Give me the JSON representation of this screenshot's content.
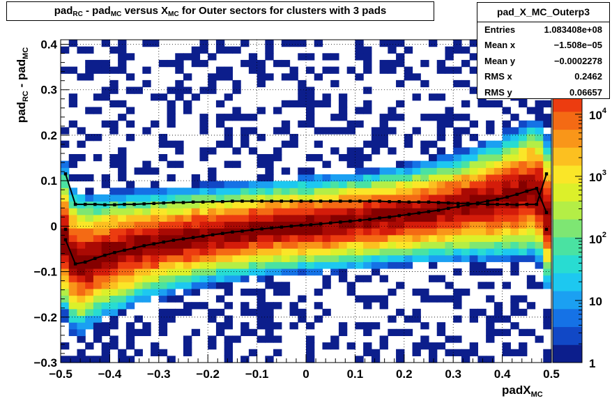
{
  "title": {
    "p1": "pad",
    "s1": "RC",
    "p2": " - pad",
    "s2": "MC",
    "p3": " versus X",
    "s3": "MC",
    "p4": " for Outer sectors for clusters with 3 pads"
  },
  "stats": {
    "name": "pad_X_MC_Outerp3",
    "rows": [
      {
        "label": "Entries",
        "value": "1.083408e+08"
      },
      {
        "label": "Mean x",
        "value": "−1.508e−05"
      },
      {
        "label": "Mean y",
        "value": "−0.0002278"
      },
      {
        "label": "RMS x",
        "value": "0.2462"
      },
      {
        "label": "RMS y",
        "value": "0.06657"
      }
    ]
  },
  "xtitle": {
    "main": "padX",
    "sub": "MC"
  },
  "ytitle": {
    "p1": "pad",
    "s1": "RC",
    "p2": " - pad",
    "s2": "MC"
  },
  "palette": [
    "#0c1e8c",
    "#1148c6",
    "#1572e6",
    "#1ba0f2",
    "#1dc8f0",
    "#28dcd2",
    "#4ae2a2",
    "#7ee673",
    "#b4ee46",
    "#dcf02a",
    "#fae628",
    "#fcc020",
    "#f99619",
    "#f46a14",
    "#ec3c10",
    "#d41c0a",
    "#aa0a04",
    "#850000"
  ],
  "chart_data": {
    "type": "heatmap",
    "xlabel": "padX_MC",
    "ylabel": "pad_RC - pad_MC",
    "xlim": [
      -0.5,
      0.5
    ],
    "ylim": [
      -0.3,
      0.41
    ],
    "x_ticks": [
      "−0.5",
      "−0.4",
      "−0.3",
      "−0.2",
      "−0.1",
      "0",
      "0.1",
      "0.2",
      "0.3",
      "0.4",
      "0.5"
    ],
    "y_ticks": [
      "−0.3",
      "−0.2",
      "−0.1",
      "0",
      "0.1",
      "0.2",
      "0.3",
      "0.4"
    ],
    "grid": true,
    "z_scale": "log",
    "z_ticks": [
      "1",
      "10",
      "10",
      "10",
      "10"
    ],
    "z_exps": [
      "",
      "",
      "2",
      "3",
      "4"
    ],
    "z_top_partial": "5",
    "overlays": [
      {
        "name": "mean profile",
        "x": [
          -0.49,
          -0.47,
          -0.45,
          -0.43,
          -0.41,
          -0.39,
          -0.37,
          -0.35,
          -0.33,
          -0.31,
          -0.29,
          -0.27,
          -0.25,
          -0.23,
          -0.21,
          -0.19,
          -0.17,
          -0.15,
          -0.13,
          -0.11,
          -0.09,
          -0.07,
          -0.05,
          -0.03,
          -0.01,
          0.01,
          0.03,
          0.05,
          0.07,
          0.09,
          0.11,
          0.13,
          0.15,
          0.17,
          0.19,
          0.21,
          0.23,
          0.25,
          0.27,
          0.29,
          0.31,
          0.33,
          0.35,
          0.37,
          0.39,
          0.41,
          0.43,
          0.45,
          0.47,
          0.49
        ],
        "y": [
          -0.03,
          -0.083,
          -0.079,
          -0.071,
          -0.064,
          -0.058,
          -0.053,
          -0.048,
          -0.043,
          -0.039,
          -0.035,
          -0.031,
          -0.028,
          -0.025,
          -0.022,
          -0.019,
          -0.016,
          -0.013,
          -0.011,
          -0.008,
          -0.006,
          -0.004,
          -0.002,
          0.0,
          0.002,
          0.003,
          0.005,
          0.007,
          0.009,
          0.011,
          0.013,
          0.015,
          0.018,
          0.02,
          0.023,
          0.026,
          0.029,
          0.032,
          0.035,
          0.039,
          0.043,
          0.047,
          0.051,
          0.055,
          0.059,
          0.064,
          0.07,
          0.077,
          0.083,
          0.03
        ]
      },
      {
        "name": "rms profile",
        "x": [
          -0.49,
          -0.47,
          -0.45,
          -0.43,
          -0.41,
          -0.39,
          -0.37,
          -0.35,
          -0.33,
          -0.31,
          -0.29,
          -0.27,
          -0.25,
          -0.23,
          -0.21,
          -0.19,
          -0.17,
          -0.15,
          -0.13,
          -0.11,
          -0.09,
          -0.07,
          -0.05,
          -0.03,
          -0.01,
          0.01,
          0.03,
          0.05,
          0.07,
          0.09,
          0.11,
          0.13,
          0.15,
          0.17,
          0.19,
          0.21,
          0.23,
          0.25,
          0.27,
          0.29,
          0.31,
          0.33,
          0.35,
          0.37,
          0.39,
          0.41,
          0.43,
          0.45,
          0.47,
          0.49
        ],
        "y": [
          0.115,
          0.048,
          0.048,
          0.048,
          0.047,
          0.047,
          0.048,
          0.048,
          0.049,
          0.05,
          0.051,
          0.052,
          0.052,
          0.053,
          0.053,
          0.054,
          0.054,
          0.055,
          0.055,
          0.055,
          0.055,
          0.055,
          0.055,
          0.055,
          0.055,
          0.055,
          0.055,
          0.055,
          0.055,
          0.055,
          0.055,
          0.055,
          0.055,
          0.054,
          0.054,
          0.053,
          0.053,
          0.053,
          0.052,
          0.051,
          0.05,
          0.05,
          0.049,
          0.048,
          0.048,
          0.048,
          0.047,
          0.048,
          0.048,
          0.115
        ]
      },
      {
        "name": "edge points",
        "x": [
          -0.49,
          0.49
        ],
        "y": [
          -0.007,
          -0.007
        ]
      }
    ]
  }
}
